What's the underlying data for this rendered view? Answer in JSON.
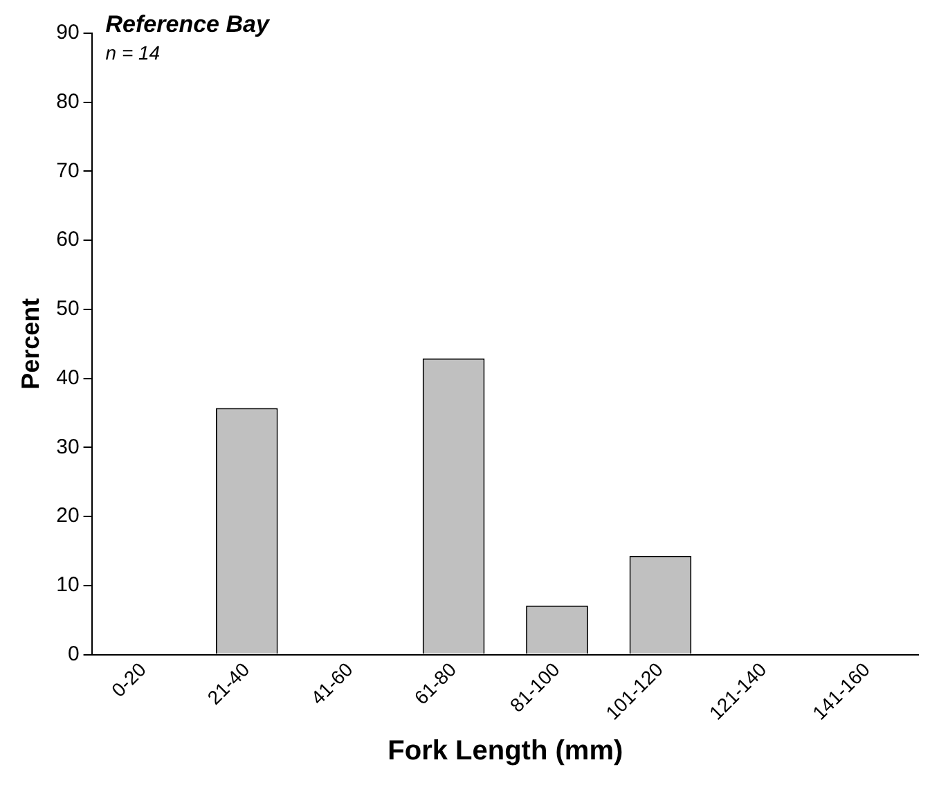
{
  "chart_data": {
    "type": "bar",
    "title": "Reference Bay",
    "xlabel": "Fork Length (mm)",
    "ylabel": "Percent",
    "categories": [
      "0-20",
      "21-40",
      "41-60",
      "61-80",
      "81-100",
      "101-120",
      "121-140",
      "141-160"
    ],
    "values": [
      0,
      35.7,
      0,
      42.9,
      7.1,
      14.3,
      0,
      0
    ],
    "color": "#c0c0c0",
    "ylim": [
      0,
      90
    ],
    "yticks": [
      0,
      10,
      20,
      30,
      40,
      50,
      60,
      70,
      80,
      90
    ],
    "grid": false,
    "legend": false,
    "annotations": [
      "n = 14"
    ]
  }
}
